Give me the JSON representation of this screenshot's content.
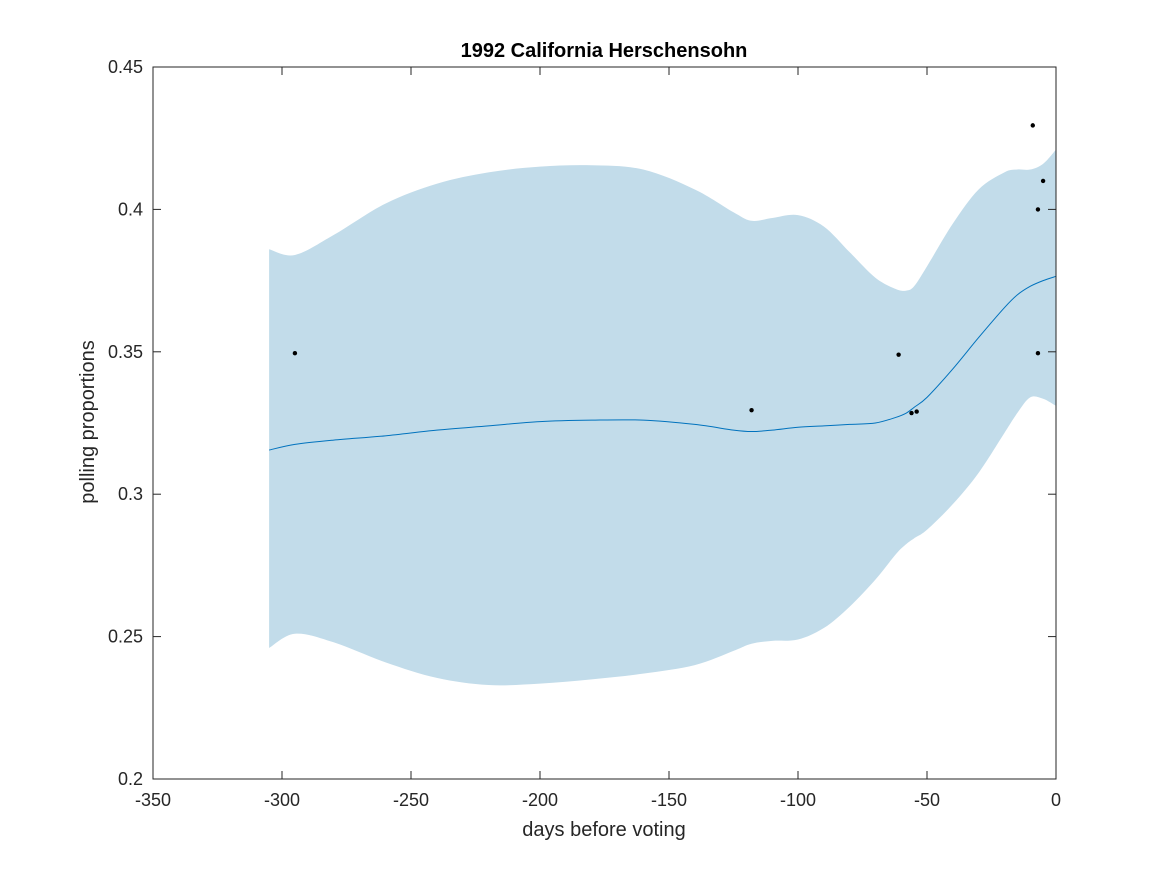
{
  "chart_data": {
    "type": "line",
    "title": "1992 California Herschensohn",
    "xlabel": "days before voting",
    "ylabel": "polling proportions",
    "xlim": [
      -350,
      0
    ],
    "ylim": [
      0.2,
      0.45
    ],
    "x_ticks": [
      -350,
      -300,
      -250,
      -200,
      -150,
      -100,
      -50,
      0
    ],
    "x_tick_labels": [
      "-350",
      "-300",
      "-250",
      "-200",
      "-150",
      "-100",
      "-50",
      "0"
    ],
    "y_ticks": [
      0.2,
      0.25,
      0.3,
      0.35,
      0.4,
      0.45
    ],
    "y_tick_labels": [
      "0.2",
      "0.25",
      "0.3",
      "0.35",
      "0.4",
      "0.45"
    ],
    "grid": false,
    "colors": {
      "band": "#c2dcea",
      "line": "#0072bd",
      "points": "#000000",
      "axis": "#262626"
    },
    "series": [
      {
        "kind": "band",
        "x": [
          -305,
          -295,
          -280,
          -260,
          -240,
          -220,
          -200,
          -180,
          -160,
          -140,
          -125,
          -118,
          -110,
          -100,
          -90,
          -80,
          -70,
          -62,
          -58,
          -55,
          -50,
          -40,
          -30,
          -20,
          -15,
          -10,
          -5,
          0
        ],
        "upper": [
          0.386,
          0.384,
          0.391,
          0.402,
          0.409,
          0.413,
          0.415,
          0.4155,
          0.414,
          0.407,
          0.399,
          0.396,
          0.397,
          0.398,
          0.394,
          0.385,
          0.376,
          0.372,
          0.3715,
          0.373,
          0.38,
          0.395,
          0.407,
          0.413,
          0.414,
          0.414,
          0.416,
          0.421
        ],
        "lower": [
          0.246,
          0.251,
          0.248,
          0.241,
          0.2355,
          0.233,
          0.2335,
          0.235,
          0.237,
          0.24,
          0.245,
          0.2475,
          0.2485,
          0.249,
          0.253,
          0.2605,
          0.27,
          0.279,
          0.2825,
          0.2845,
          0.2875,
          0.2965,
          0.3075,
          0.3215,
          0.3285,
          0.334,
          0.3335,
          0.331
        ]
      },
      {
        "kind": "line",
        "x": [
          -305,
          -295,
          -280,
          -260,
          -240,
          -220,
          -200,
          -180,
          -160,
          -140,
          -125,
          -118,
          -110,
          -100,
          -90,
          -80,
          -70,
          -62,
          -58,
          -55,
          -50,
          -40,
          -30,
          -20,
          -15,
          -10,
          -5,
          0
        ],
        "y": [
          0.3155,
          0.3175,
          0.319,
          0.3205,
          0.3225,
          0.324,
          0.3255,
          0.326,
          0.326,
          0.3245,
          0.3225,
          0.322,
          0.3225,
          0.3235,
          0.324,
          0.3245,
          0.325,
          0.327,
          0.3285,
          0.3305,
          0.334,
          0.344,
          0.355,
          0.3655,
          0.37,
          0.373,
          0.375,
          0.3765
        ]
      },
      {
        "kind": "scatter",
        "x": [
          -295,
          -118,
          -61,
          -56,
          -54,
          -9,
          -7,
          -7,
          -5
        ],
        "y": [
          0.3495,
          0.3295,
          0.349,
          0.3285,
          0.329,
          0.4295,
          0.4,
          0.3495,
          0.41
        ]
      }
    ]
  }
}
